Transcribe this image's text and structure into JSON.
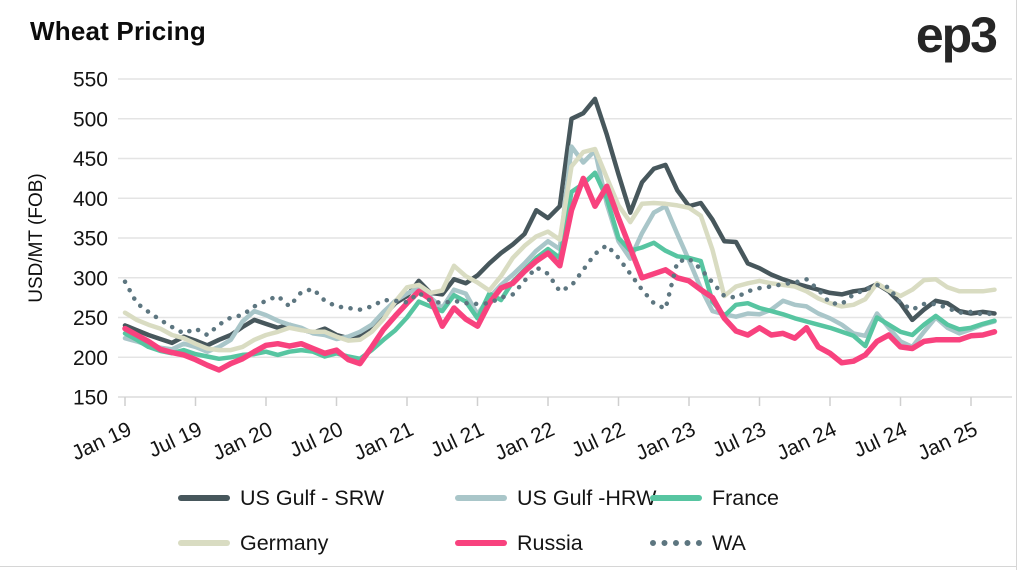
{
  "header": {
    "title": "Wheat Pricing",
    "logo": "ep3"
  },
  "chart_data": {
    "type": "line",
    "title": "Wheat Pricing",
    "xlabel": "",
    "ylabel": "USD/MT (FOB)",
    "ylim": [
      150,
      550
    ],
    "grid": "horizontal",
    "legend_position": "bottom",
    "y_ticks": [
      550,
      500,
      450,
      400,
      350,
      300,
      250,
      200,
      150
    ],
    "x_tick_labels": [
      "Jan 19",
      "Jul 19",
      "Jan 20",
      "Jul 20",
      "Jan 21",
      "Jul 21",
      "Jan 22",
      "Jul 22",
      "Jan 23",
      "Jul 23",
      "Jan 24",
      "Jul 24",
      "Jan 25"
    ],
    "months": [
      "Jan 19",
      "Feb 19",
      "Mar 19",
      "Apr 19",
      "May 19",
      "Jun 19",
      "Jul 19",
      "Aug 19",
      "Sep 19",
      "Oct 19",
      "Nov 19",
      "Dec 19",
      "Jan 20",
      "Feb 20",
      "Mar 20",
      "Apr 20",
      "May 20",
      "Jun 20",
      "Jul 20",
      "Aug 20",
      "Sep 20",
      "Oct 20",
      "Nov 20",
      "Dec 20",
      "Jan 21",
      "Feb 21",
      "Mar 21",
      "Apr 21",
      "May 21",
      "Jun 21",
      "Jul 21",
      "Aug 21",
      "Sep 21",
      "Oct 21",
      "Nov 21",
      "Dec 21",
      "Jan 22",
      "Feb 22",
      "Mar 22",
      "Apr 22",
      "May 22",
      "Jun 22",
      "Jul 22",
      "Aug 22",
      "Sep 22",
      "Oct 22",
      "Nov 22",
      "Dec 22",
      "Jan 23",
      "Feb 23",
      "Mar 23",
      "Apr 23",
      "May 23",
      "Jun 23",
      "Jul 23",
      "Aug 23",
      "Sep 23",
      "Oct 23",
      "Nov 23",
      "Dec 23",
      "Jan 24",
      "Feb 24",
      "Mar 24",
      "Apr 24",
      "May 24",
      "Jun 24",
      "Jul 24",
      "Aug 24",
      "Sep 24",
      "Oct 24",
      "Nov 24",
      "Dec 24",
      "Jan 25",
      "Feb 25",
      "Mar 25"
    ],
    "series": [
      {
        "name": "US Gulf - SRW",
        "color": "#47575C",
        "style": "solid",
        "width": 4.5,
        "values": [
          240,
          234,
          228,
          223,
          218,
          226,
          221,
          215,
          222,
          228,
          238,
          247,
          242,
          237,
          241,
          235,
          231,
          236,
          228,
          224,
          228,
          238,
          252,
          268,
          277,
          296,
          281,
          279,
          298,
          293,
          303,
          318,
          331,
          342,
          355,
          385,
          375,
          390,
          500,
          507,
          525,
          480,
          430,
          382,
          420,
          437,
          442,
          410,
          390,
          394,
          373,
          346,
          345,
          318,
          312,
          304,
          298,
          293,
          289,
          285,
          281,
          279,
          283,
          285,
          292,
          283,
          268,
          247,
          260,
          271,
          268,
          258,
          255,
          257,
          255
        ]
      },
      {
        "name": "US Gulf -HRW",
        "color": "#A9C6C9",
        "style": "solid",
        "width": 4.5,
        "values": [
          224,
          220,
          215,
          212,
          210,
          217,
          213,
          207,
          213,
          222,
          245,
          258,
          253,
          246,
          241,
          237,
          230,
          228,
          223,
          226,
          232,
          241,
          257,
          271,
          280,
          287,
          275,
          262,
          285,
          280,
          254,
          275,
          291,
          304,
          318,
          334,
          346,
          336,
          465,
          445,
          460,
          393,
          346,
          324,
          356,
          382,
          390,
          355,
          322,
          287,
          258,
          254,
          251,
          255,
          254,
          260,
          271,
          266,
          264,
          255,
          249,
          241,
          230,
          227,
          255,
          237,
          220,
          213,
          232,
          250,
          237,
          230,
          235,
          241,
          245
        ]
      },
      {
        "name": "France",
        "color": "#57C5A1",
        "style": "solid",
        "width": 4.5,
        "values": [
          230,
          222,
          213,
          208,
          205,
          209,
          204,
          201,
          198,
          200,
          203,
          204,
          207,
          203,
          207,
          209,
          207,
          201,
          205,
          201,
          198,
          209,
          222,
          234,
          250,
          270,
          264,
          258,
          278,
          270,
          249,
          280,
          272,
          295,
          310,
          325,
          336,
          325,
          408,
          418,
          432,
          400,
          350,
          334,
          338,
          344,
          334,
          327,
          325,
          321,
          270,
          252,
          266,
          268,
          262,
          258,
          254,
          249,
          245,
          241,
          237,
          232,
          227,
          214,
          250,
          241,
          232,
          228,
          241,
          252,
          241,
          235,
          237,
          242,
          246
        ]
      },
      {
        "name": "Germany",
        "color": "#D9DCC2",
        "style": "solid",
        "width": 4.5,
        "values": [
          256,
          247,
          241,
          236,
          228,
          224,
          217,
          211,
          209,
          209,
          213,
          222,
          228,
          232,
          237,
          234,
          232,
          232,
          226,
          221,
          222,
          232,
          248,
          270,
          288,
          291,
          281,
          284,
          315,
          302,
          294,
          284,
          302,
          325,
          340,
          352,
          358,
          348,
          440,
          458,
          462,
          426,
          391,
          370,
          393,
          394,
          393,
          391,
          388,
          378,
          335,
          277,
          289,
          293,
          296,
          293,
          291,
          289,
          283,
          274,
          268,
          264,
          266,
          273,
          293,
          284,
          277,
          285,
          297,
          298,
          288,
          283,
          283,
          283,
          285
        ]
      },
      {
        "name": "Russia",
        "color": "#F8427E",
        "style": "solid",
        "width": 5.5,
        "values": [
          236,
          228,
          220,
          210,
          206,
          203,
          197,
          190,
          184,
          192,
          198,
          207,
          215,
          217,
          214,
          217,
          211,
          205,
          209,
          197,
          192,
          213,
          235,
          252,
          268,
          283,
          273,
          239,
          262,
          248,
          239,
          268,
          287,
          293,
          308,
          321,
          331,
          315,
          385,
          425,
          390,
          415,
          375,
          337,
          300,
          305,
          310,
          300,
          296,
          285,
          275,
          249,
          233,
          228,
          237,
          228,
          230,
          224,
          237,
          213,
          205,
          193,
          195,
          203,
          220,
          228,
          213,
          211,
          220,
          222,
          222,
          222,
          227,
          228,
          232
        ]
      },
      {
        "name": "WA",
        "color": "#5D7680",
        "style": "dotted",
        "width": 4.5,
        "values": [
          295,
          268,
          257,
          247,
          238,
          230,
          236,
          228,
          241,
          250,
          253,
          264,
          271,
          277,
          264,
          282,
          286,
          271,
          264,
          262,
          260,
          264,
          272,
          271,
          269,
          281,
          271,
          268,
          271,
          268,
          267,
          268,
          275,
          279,
          296,
          313,
          305,
          283,
          290,
          310,
          330,
          341,
          325,
          305,
          285,
          268,
          261,
          320,
          324,
          311,
          294,
          277,
          275,
          283,
          287,
          289,
          292,
          294,
          298,
          285,
          268,
          267,
          279,
          285,
          291,
          288,
          268,
          260,
          267,
          267,
          262,
          256,
          257,
          254,
          255
        ]
      }
    ]
  }
}
